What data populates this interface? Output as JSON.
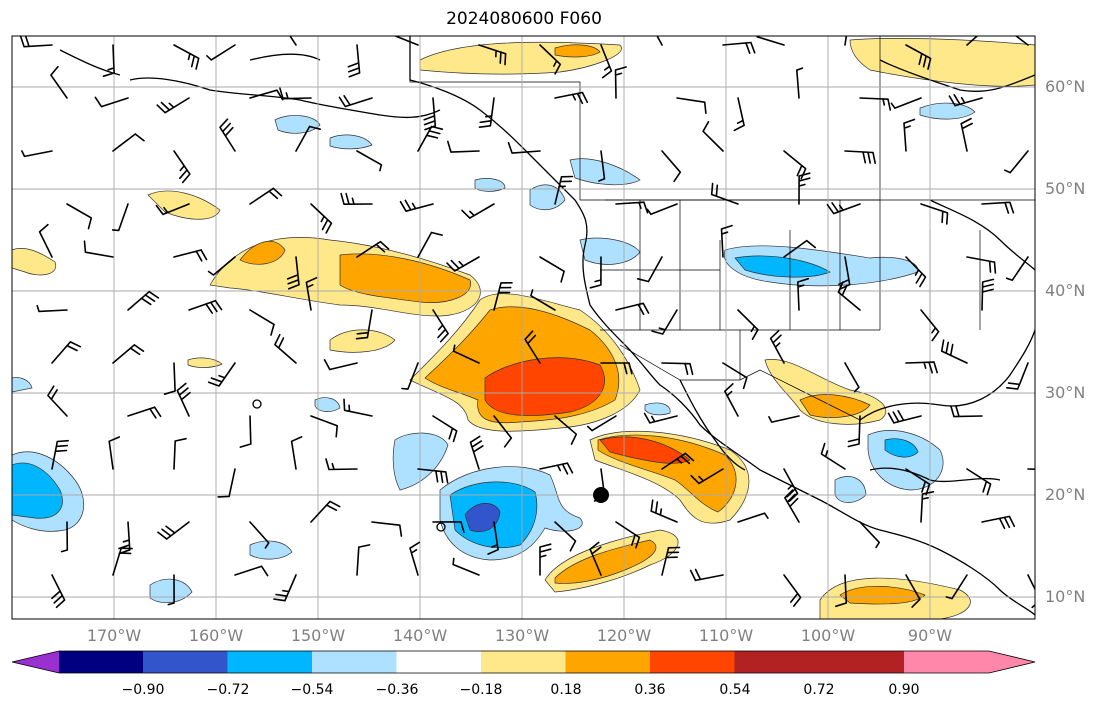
{
  "title": "2024080600 F060",
  "lat_labels": [
    "60°N",
    "50°N",
    "40°N",
    "30°N",
    "20°N",
    "10°N"
  ],
  "lon_labels": [
    "170°W",
    "160°W",
    "150°W",
    "140°W",
    "130°W",
    "120°W",
    "110°W",
    "100°W",
    "90°W"
  ],
  "colorbar": {
    "ticks": [
      "−0.90",
      "−0.72",
      "−0.54",
      "−0.36",
      "−0.18",
      "0.18",
      "0.36",
      "0.54",
      "0.72",
      "0.90"
    ],
    "colors": [
      "#9b30d0",
      "#000080",
      "#3355cc",
      "#00b7ff",
      "#aee0ff",
      "#ffffff",
      "#ffe88a",
      "#ffa500",
      "#ff4500",
      "#b22222",
      "#ff88aa"
    ]
  },
  "anomaly_colors": {
    "neg_light": "#aee0ff",
    "neg_mid": "#00b7ff",
    "neg_strong": "#3355cc",
    "pos_light": "#ffe88a",
    "pos_mid": "#ffa500",
    "pos_strong": "#ff4500"
  }
}
